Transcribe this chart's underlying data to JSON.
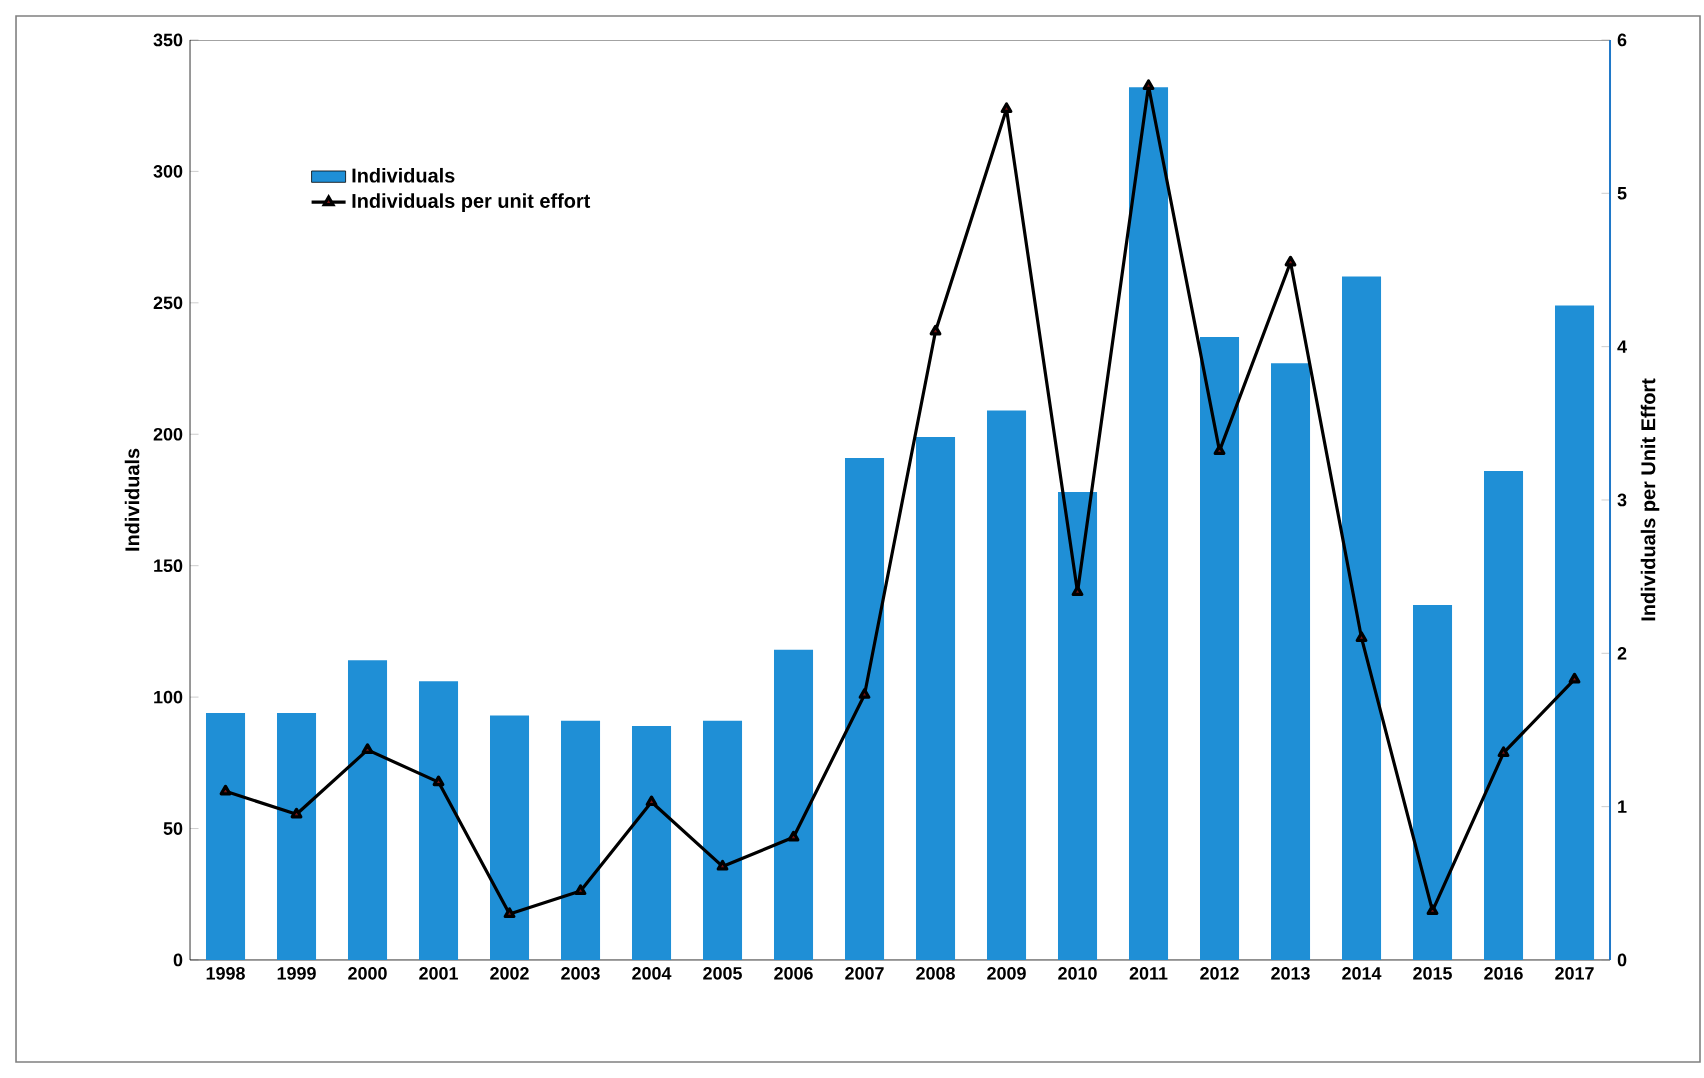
{
  "chart_data": {
    "type": "bar",
    "ylabel": "Individuals",
    "y2label": "Individuals per Unit Effort",
    "categories": [
      "1998",
      "1999",
      "2000",
      "2001",
      "2002",
      "2003",
      "2004",
      "2005",
      "2006",
      "2007",
      "2008",
      "2009",
      "2010",
      "2011",
      "2012",
      "2013",
      "2014",
      "2015",
      "2016",
      "2017"
    ],
    "series": [
      {
        "name": "Individuals",
        "color": "#1f8fd6",
        "values": [
          94,
          94,
          114,
          106,
          93,
          91,
          89,
          91,
          118,
          191,
          199,
          209,
          178,
          332,
          237,
          227,
          260,
          135,
          186,
          249
        ]
      },
      {
        "name": "Individuals per unit effort",
        "type": "line",
        "axis": "y2",
        "color": "#000000",
        "marker": "triangle",
        "line_style": "solid",
        "values": [
          1.1,
          0.95,
          1.37,
          1.16,
          0.3,
          0.45,
          1.03,
          0.61,
          0.8,
          1.73,
          4.1,
          5.55,
          2.4,
          5.7,
          3.32,
          4.55,
          2.1,
          0.32,
          1.35,
          1.83
        ]
      }
    ],
    "ylim": [
      0,
      350
    ],
    "yticks": [
      0,
      50,
      100,
      150,
      200,
      250,
      300,
      350
    ],
    "y2lim": [
      0,
      6
    ],
    "y2ticks": [
      0,
      1,
      2,
      3,
      4,
      5,
      6
    ],
    "legend": "top left"
  }
}
